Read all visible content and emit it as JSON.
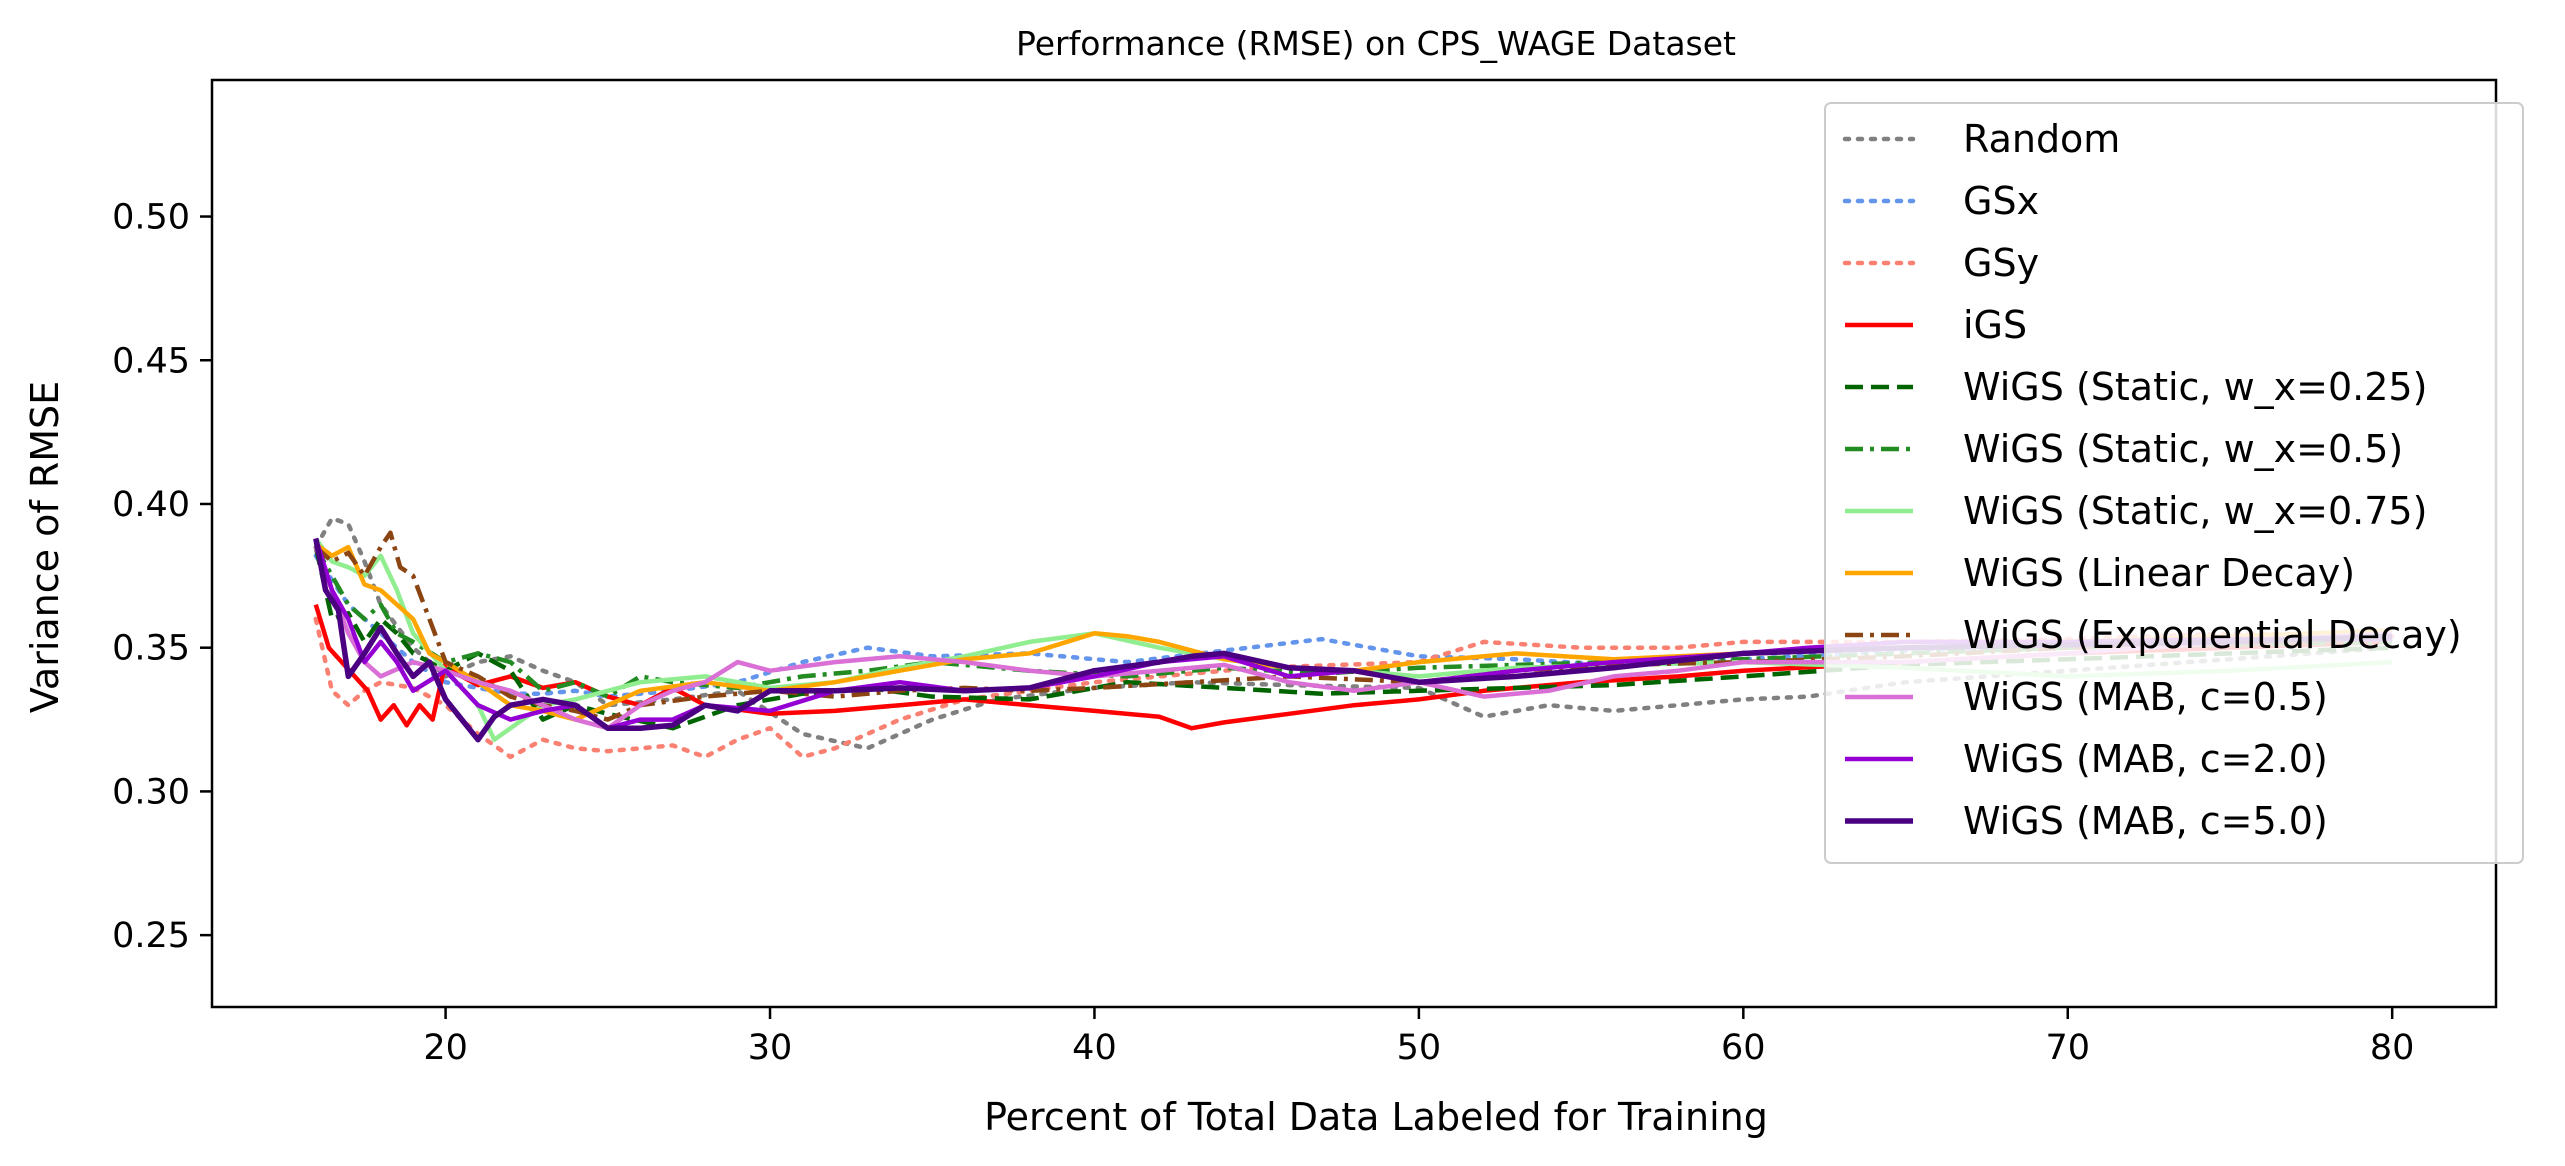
{
  "chart_data": {
    "type": "line",
    "title": "Performance (RMSE) on CPS_WAGE Dataset",
    "xlabel": "Percent of Total Data Labeled for Training",
    "ylabel": "Variance of RMSE",
    "xlim": [
      12.8,
      83.2
    ],
    "ylim": [
      0.225,
      0.5475
    ],
    "xticks": [
      20,
      30,
      40,
      50,
      60,
      70,
      80
    ],
    "yticks": [
      0.25,
      0.3,
      0.35,
      0.4,
      0.45,
      0.5
    ],
    "xtick_labels": [
      "20",
      "30",
      "40",
      "50",
      "60",
      "70",
      "80"
    ],
    "ytick_labels": [
      "0.25",
      "0.30",
      "0.35",
      "0.40",
      "0.45",
      "0.50"
    ],
    "grid": false,
    "legend_position": "upper right",
    "series": [
      {
        "name": "Random",
        "color": "#808080",
        "style": "dotted",
        "width": 4.5,
        "x": [
          16,
          16.5,
          17,
          17.5,
          18,
          19,
          20,
          21,
          22,
          23,
          24,
          25,
          27,
          29,
          31,
          33,
          35,
          37,
          40,
          43,
          46,
          50,
          52,
          54,
          56,
          58,
          60,
          62,
          65,
          70,
          75,
          80
        ],
        "y": [
          0.385,
          0.395,
          0.393,
          0.38,
          0.365,
          0.35,
          0.34,
          0.345,
          0.347,
          0.342,
          0.338,
          0.33,
          0.332,
          0.335,
          0.32,
          0.315,
          0.325,
          0.332,
          0.336,
          0.338,
          0.337,
          0.336,
          0.326,
          0.33,
          0.328,
          0.33,
          0.332,
          0.333,
          0.338,
          0.342,
          0.346,
          0.35
        ]
      },
      {
        "name": "GSx",
        "color": "#6495ed",
        "style": "dotted",
        "width": 4.5,
        "x": [
          16,
          17,
          18,
          19,
          20,
          21,
          22,
          23,
          24,
          25,
          27,
          29,
          31,
          33,
          35,
          38,
          41,
          44,
          47,
          50,
          53,
          56,
          60,
          65,
          70,
          75,
          80
        ],
        "y": [
          0.382,
          0.365,
          0.355,
          0.345,
          0.338,
          0.336,
          0.334,
          0.334,
          0.335,
          0.333,
          0.335,
          0.338,
          0.345,
          0.35,
          0.347,
          0.348,
          0.345,
          0.349,
          0.353,
          0.347,
          0.346,
          0.344,
          0.346,
          0.349,
          0.351,
          0.352,
          0.353
        ]
      },
      {
        "name": "GSy",
        "color": "#fa8072",
        "style": "dotted",
        "width": 4.5,
        "x": [
          16,
          16.5,
          17,
          17.5,
          18,
          19,
          20,
          21,
          22,
          23,
          24,
          25,
          26,
          27,
          28,
          29,
          30,
          31,
          32,
          34,
          36,
          40,
          45,
          50,
          52,
          55,
          58,
          60,
          65,
          70,
          75,
          80
        ],
        "y": [
          0.36,
          0.335,
          0.33,
          0.335,
          0.338,
          0.336,
          0.33,
          0.32,
          0.312,
          0.318,
          0.315,
          0.314,
          0.315,
          0.316,
          0.312,
          0.318,
          0.322,
          0.312,
          0.315,
          0.325,
          0.332,
          0.338,
          0.343,
          0.345,
          0.352,
          0.35,
          0.35,
          0.352,
          0.352,
          0.353,
          0.355,
          0.354
        ]
      },
      {
        "name": "iGS",
        "color": "#ff0000",
        "style": "solid",
        "width": 4.5,
        "x": [
          16,
          16.4,
          16.8,
          17.2,
          17.6,
          18,
          18.4,
          18.8,
          19.2,
          19.6,
          20,
          20.5,
          21,
          22,
          23,
          24,
          25,
          26,
          27,
          28,
          30,
          32,
          34,
          36,
          38,
          40,
          42,
          43,
          44,
          46,
          48,
          50,
          52,
          55,
          58,
          60,
          65,
          70,
          75,
          80
        ],
        "y": [
          0.365,
          0.35,
          0.345,
          0.34,
          0.335,
          0.325,
          0.33,
          0.323,
          0.33,
          0.325,
          0.345,
          0.34,
          0.337,
          0.34,
          0.336,
          0.338,
          0.333,
          0.33,
          0.336,
          0.33,
          0.327,
          0.328,
          0.33,
          0.332,
          0.33,
          0.328,
          0.326,
          0.322,
          0.324,
          0.327,
          0.33,
          0.332,
          0.335,
          0.338,
          0.34,
          0.342,
          0.345,
          0.348,
          0.35,
          0.352
        ]
      },
      {
        "name": "WiGS (Static, w_x=0.25)",
        "color": "#006400",
        "style": "dashed",
        "width": 4.5,
        "x": [
          16,
          16.5,
          17,
          17.5,
          18,
          18.5,
          19,
          20,
          21,
          22,
          23,
          24,
          25,
          27,
          29,
          31,
          33,
          35,
          38,
          41,
          44,
          47,
          50,
          53,
          56,
          60,
          65,
          70,
          75,
          80
        ],
        "y": [
          0.385,
          0.36,
          0.362,
          0.352,
          0.36,
          0.355,
          0.348,
          0.342,
          0.348,
          0.342,
          0.325,
          0.33,
          0.327,
          0.322,
          0.33,
          0.334,
          0.336,
          0.333,
          0.332,
          0.338,
          0.336,
          0.334,
          0.335,
          0.336,
          0.337,
          0.34,
          0.344,
          0.346,
          0.348,
          0.35
        ]
      },
      {
        "name": "WiGS (Static, w_x=0.5)",
        "color": "#228b22",
        "style": "dashdot",
        "width": 4.5,
        "x": [
          16,
          16.5,
          17,
          17.5,
          18,
          18.5,
          19,
          20,
          21,
          22,
          23,
          24,
          25,
          26,
          27,
          29,
          31,
          33,
          35,
          38,
          41,
          44,
          47,
          50,
          53,
          56,
          60,
          65,
          70,
          75,
          80
        ],
        "y": [
          0.385,
          0.375,
          0.365,
          0.36,
          0.365,
          0.355,
          0.352,
          0.345,
          0.348,
          0.345,
          0.335,
          0.338,
          0.333,
          0.34,
          0.338,
          0.336,
          0.34,
          0.342,
          0.345,
          0.342,
          0.34,
          0.343,
          0.341,
          0.343,
          0.344,
          0.345,
          0.346,
          0.348,
          0.35,
          0.351,
          0.352
        ]
      },
      {
        "name": "WiGS (Static, w_x=0.75)",
        "color": "#90ee90",
        "style": "solid",
        "width": 4.5,
        "x": [
          16,
          16.5,
          17,
          17.5,
          18,
          18.5,
          19,
          20,
          21,
          21.5,
          22,
          23,
          24,
          25,
          26,
          28,
          30,
          32,
          34,
          36,
          38,
          40,
          42,
          44,
          46,
          48,
          50,
          53,
          56,
          60,
          65,
          70,
          75,
          80
        ],
        "y": [
          0.388,
          0.38,
          0.378,
          0.375,
          0.382,
          0.37,
          0.355,
          0.342,
          0.33,
          0.318,
          0.322,
          0.33,
          0.332,
          0.335,
          0.338,
          0.34,
          0.336,
          0.338,
          0.343,
          0.347,
          0.352,
          0.355,
          0.35,
          0.346,
          0.343,
          0.342,
          0.34,
          0.343,
          0.344,
          0.345,
          0.343,
          0.34,
          0.342,
          0.345
        ]
      },
      {
        "name": "WiGS (Linear Decay)",
        "color": "#ffa500",
        "style": "solid",
        "width": 4.5,
        "x": [
          16,
          16.5,
          17,
          17.5,
          18,
          18.5,
          19,
          19.5,
          20,
          21,
          22,
          23,
          24,
          25,
          26,
          28,
          30,
          32,
          34,
          36,
          38,
          40,
          41,
          42,
          44,
          46,
          48,
          50,
          53,
          56,
          60,
          65,
          70,
          75,
          80
        ],
        "y": [
          0.386,
          0.382,
          0.385,
          0.372,
          0.37,
          0.365,
          0.36,
          0.348,
          0.345,
          0.338,
          0.33,
          0.328,
          0.325,
          0.33,
          0.335,
          0.338,
          0.335,
          0.338,
          0.342,
          0.346,
          0.348,
          0.355,
          0.354,
          0.352,
          0.346,
          0.343,
          0.342,
          0.345,
          0.348,
          0.346,
          0.348,
          0.35,
          0.352,
          0.354,
          0.356
        ]
      },
      {
        "name": "WiGS (Exponential Decay)",
        "color": "#8b4513",
        "style": "dashdot",
        "width": 4.5,
        "x": [
          16,
          16.5,
          17,
          17.5,
          18,
          18.3,
          18.6,
          19,
          19.5,
          20,
          21,
          22,
          23,
          24,
          25,
          26,
          28,
          30,
          32,
          34,
          36,
          38,
          40,
          43,
          46,
          50,
          53,
          56,
          60,
          65,
          70,
          75,
          80
        ],
        "y": [
          0.385,
          0.38,
          0.383,
          0.375,
          0.385,
          0.39,
          0.378,
          0.375,
          0.36,
          0.345,
          0.34,
          0.333,
          0.33,
          0.328,
          0.325,
          0.33,
          0.333,
          0.335,
          0.333,
          0.335,
          0.336,
          0.335,
          0.336,
          0.338,
          0.34,
          0.338,
          0.342,
          0.344,
          0.345,
          0.347,
          0.35,
          0.351,
          0.353
        ]
      },
      {
        "name": "WiGS (MAB, c=0.5)",
        "color": "#da70d6",
        "style": "solid",
        "width": 4.5,
        "x": [
          16,
          16.5,
          17,
          17.5,
          18,
          19,
          20,
          21,
          22,
          23,
          24,
          25,
          26,
          27,
          28,
          29,
          30,
          32,
          34,
          36,
          38,
          40,
          42,
          44,
          46,
          48,
          50,
          52,
          54,
          56,
          58,
          60,
          65,
          70,
          75,
          80
        ],
        "y": [
          0.385,
          0.37,
          0.355,
          0.345,
          0.34,
          0.345,
          0.342,
          0.338,
          0.335,
          0.33,
          0.325,
          0.322,
          0.33,
          0.335,
          0.338,
          0.345,
          0.342,
          0.345,
          0.347,
          0.345,
          0.342,
          0.34,
          0.342,
          0.344,
          0.338,
          0.335,
          0.338,
          0.333,
          0.335,
          0.34,
          0.342,
          0.345,
          0.345,
          0.348,
          0.352,
          0.355
        ]
      },
      {
        "name": "WiGS (MAB, c=2.0)",
        "color": "#9400d3",
        "style": "solid",
        "width": 4.5,
        "x": [
          16,
          16.5,
          17,
          17.5,
          18,
          18.5,
          19,
          20,
          21,
          22,
          23,
          24,
          25,
          26,
          27,
          28,
          30,
          32,
          34,
          36,
          38,
          40,
          42,
          44,
          46,
          48,
          50,
          53,
          56,
          60,
          62,
          65,
          70,
          75,
          80
        ],
        "y": [
          0.388,
          0.37,
          0.36,
          0.345,
          0.352,
          0.345,
          0.335,
          0.342,
          0.33,
          0.325,
          0.328,
          0.33,
          0.322,
          0.325,
          0.325,
          0.33,
          0.328,
          0.335,
          0.338,
          0.335,
          0.336,
          0.34,
          0.345,
          0.347,
          0.34,
          0.342,
          0.338,
          0.342,
          0.345,
          0.348,
          0.35,
          0.352,
          0.352,
          0.353,
          0.353
        ]
      },
      {
        "name": "WiGS (MAB, c=5.0)",
        "color": "#4b0082",
        "style": "solid",
        "width": 5.5,
        "x": [
          16,
          16.3,
          16.7,
          17,
          17.5,
          18,
          18.5,
          19,
          19.5,
          20,
          20.5,
          21,
          21.5,
          22,
          23,
          24,
          25,
          26,
          27,
          28,
          29,
          30,
          32,
          34,
          36,
          38,
          40,
          42,
          43,
          44,
          46,
          48,
          50,
          53,
          56,
          60,
          65,
          70,
          75,
          80
        ],
        "y": [
          0.388,
          0.37,
          0.363,
          0.34,
          0.348,
          0.357,
          0.348,
          0.34,
          0.345,
          0.332,
          0.325,
          0.318,
          0.326,
          0.33,
          0.332,
          0.33,
          0.322,
          0.322,
          0.323,
          0.33,
          0.328,
          0.335,
          0.335,
          0.336,
          0.335,
          0.336,
          0.342,
          0.345,
          0.347,
          0.348,
          0.343,
          0.342,
          0.338,
          0.34,
          0.343,
          0.348,
          0.35,
          0.351,
          0.352,
          0.354
        ]
      }
    ]
  }
}
